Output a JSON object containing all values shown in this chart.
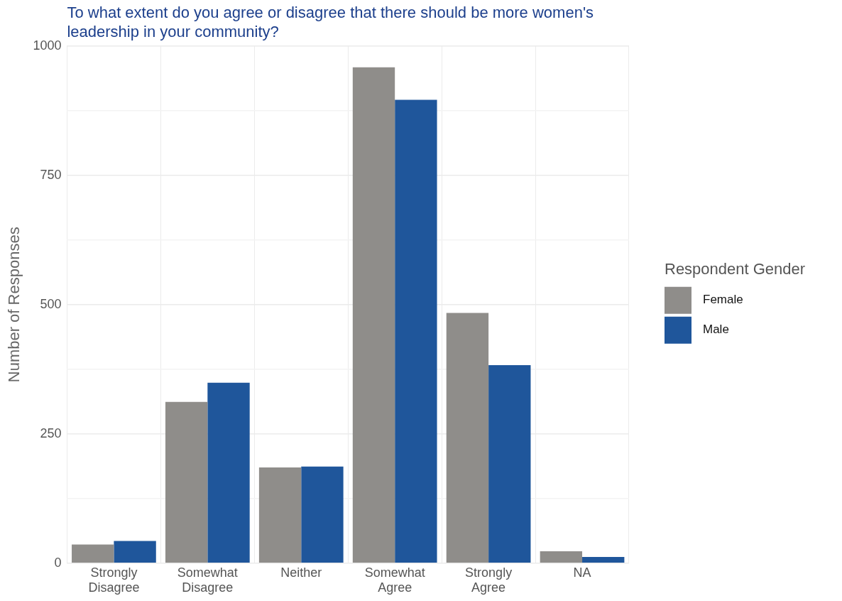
{
  "chart_data": {
    "type": "bar",
    "title": "To what extent do you agree or disagree that there should be more women's leadership in your community?",
    "ylabel": "Number of Responses",
    "legend_title": "Respondent Gender",
    "categories": [
      "Strongly Disagree",
      "Somewhat Disagree",
      "Neither",
      "Somewhat Agree",
      "Strongly Agree",
      "NA"
    ],
    "series": [
      {
        "name": "Female",
        "color": "#8f8d8a",
        "values": [
          36,
          312,
          185,
          959,
          484,
          23
        ]
      },
      {
        "name": "Male",
        "color": "#1f569b",
        "values": [
          43,
          349,
          187,
          896,
          383,
          12
        ]
      }
    ],
    "ylim": [
      0,
      1000
    ],
    "yticks": [
      0,
      {
        "value": 125,
        "label": null
      },
      250,
      {
        "value": 375,
        "label": null
      },
      500,
      {
        "value": 625,
        "label": null
      },
      750,
      {
        "value": 875,
        "label": null
      },
      1000
    ],
    "grid": true,
    "legend": "right"
  }
}
